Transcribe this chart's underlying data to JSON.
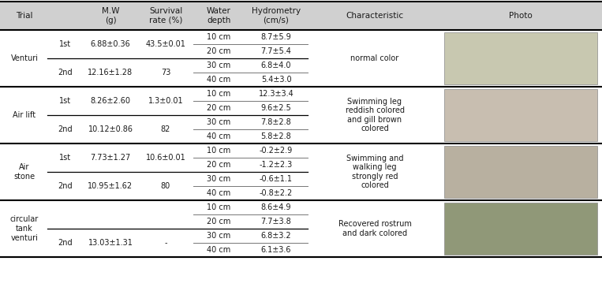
{
  "header_labels": [
    "Trial",
    "M.W\n(g)",
    "Survival\nrate (%)",
    "Water\ndepth",
    "Hydrometry\n(cm/s)",
    "Characteristic",
    "Photo"
  ],
  "sections": [
    {
      "trial": "Venturi",
      "sub_rows": [
        {
          "sub": "1st",
          "mw": "6.88±0.36",
          "survival": "43.5±0.01",
          "depths": [
            "10 cm",
            "20 cm"
          ],
          "hydros": [
            "8.7±5.9",
            "7.7±5.4"
          ]
        },
        {
          "sub": "2nd",
          "mw": "12.16±1.28",
          "survival": "73",
          "depths": [
            "30 cm",
            "40 cm"
          ],
          "hydros": [
            "6.8±4.0",
            "5.4±3.0"
          ]
        }
      ],
      "characteristic": "normal color",
      "photo_color": "#c8c8b0"
    },
    {
      "trial": "Air lift",
      "sub_rows": [
        {
          "sub": "1st",
          "mw": "8.26±2.60",
          "survival": "1.3±0.01",
          "depths": [
            "10 cm",
            "20 cm"
          ],
          "hydros": [
            "12.3±3.4",
            "9.6±2.5"
          ]
        },
        {
          "sub": "2nd",
          "mw": "10.12±0.86",
          "survival": "82",
          "depths": [
            "30 cm",
            "40 cm"
          ],
          "hydros": [
            "7.8±2.8",
            "5.8±2.8"
          ]
        }
      ],
      "characteristic": "Swimming leg\nreddish colored\nand gill brown\ncolored",
      "photo_color": "#c8beb0"
    },
    {
      "trial": "Air\nstone",
      "sub_rows": [
        {
          "sub": "1st",
          "mw": "7.73±1.27",
          "survival": "10.6±0.01",
          "depths": [
            "10 cm",
            "20 cm"
          ],
          "hydros": [
            "-0.2±2.9",
            "-1.2±2.3"
          ]
        },
        {
          "sub": "2nd",
          "mw": "10.95±1.62",
          "survival": "80",
          "depths": [
            "30 cm",
            "40 cm"
          ],
          "hydros": [
            "-0.6±1.1",
            "-0.8±2.2"
          ]
        }
      ],
      "characteristic": "Swimming and\nwalking leg\nstrongly red\ncolored",
      "photo_color": "#b8b0a0"
    },
    {
      "trial": "circular\ntank\nventuri",
      "sub_rows": [
        {
          "sub": "",
          "mw": "",
          "survival": "",
          "depths": [
            "10 cm",
            "20 cm"
          ],
          "hydros": [
            "8.6±4.9",
            "7.7±3.8"
          ]
        },
        {
          "sub": "2nd",
          "mw": "13.03±1.31",
          "survival": "-",
          "depths": [
            "30 cm",
            "40 cm"
          ],
          "hydros": [
            "6.8±3.2",
            "6.1±3.6"
          ]
        }
      ],
      "characteristic": "Recovered rostrum\nand dark colored",
      "photo_color": "#909878"
    }
  ],
  "header_bg": "#d0d0d0",
  "text_color": "#1a1a1a",
  "font_size": 7.0,
  "header_font_size": 7.5,
  "thick_lw": 1.5,
  "thin_lw": 0.6,
  "mid_lw": 0.9
}
